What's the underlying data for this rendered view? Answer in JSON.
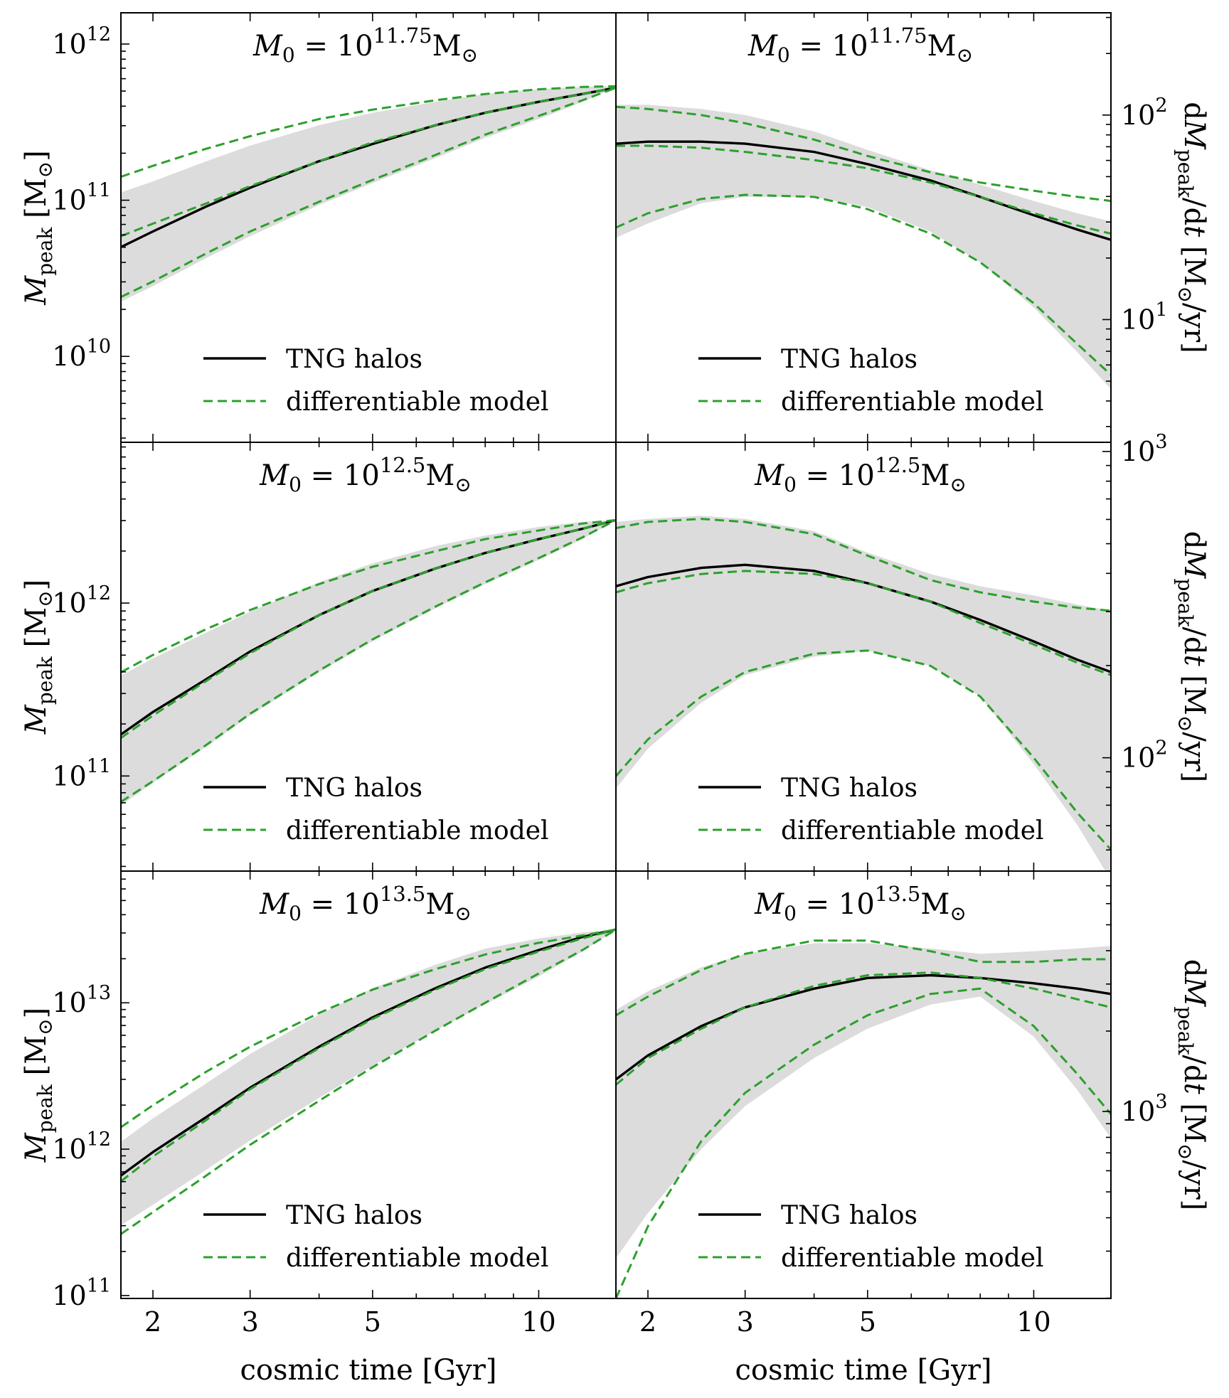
{
  "figure": {
    "xlabel": "cosmic time [Gyr]",
    "x_ticks": [
      2,
      3,
      5,
      10
    ],
    "colors": {
      "band": "#dcdcdc",
      "tng": "#000000",
      "model": "#2ca02c"
    }
  },
  "chart_data": [
    {
      "type": "line",
      "panel": "top-left",
      "quantity": "Mpeak",
      "title": "M0 = 10^11.75 M⊙",
      "ylabel": "Mpeak [M⊙]",
      "yscale": "log",
      "ylim_log10": [
        9.45,
        12.2
      ],
      "y_ticks_log10": [
        10,
        11,
        12
      ],
      "xscale": "log",
      "xlim": [
        1.75,
        13.8
      ],
      "legend": {
        "position": "lower-center",
        "entries": [
          "TNG halos",
          "differentiable model"
        ]
      },
      "x": [
        1.75,
        2.0,
        2.5,
        3.0,
        4.0,
        5.0,
        6.5,
        8.0,
        10.0,
        12.0,
        13.8
      ],
      "series": [
        {
          "name": "TNG halos",
          "style": "solid",
          "log10_values": [
            10.7,
            10.8,
            10.96,
            11.08,
            11.25,
            11.36,
            11.48,
            11.56,
            11.63,
            11.68,
            11.72
          ]
        },
        {
          "style": "dashed",
          "log10_values": [
            11.15,
            11.22,
            11.33,
            11.41,
            11.52,
            11.58,
            11.64,
            11.68,
            11.71,
            11.725,
            11.73
          ]
        },
        {
          "style": "dashed",
          "log10_values": [
            10.77,
            10.85,
            10.98,
            11.09,
            11.25,
            11.37,
            11.48,
            11.56,
            11.63,
            11.68,
            11.72
          ]
        },
        {
          "style": "dashed",
          "log10_values": [
            10.38,
            10.48,
            10.66,
            10.8,
            10.99,
            11.13,
            11.29,
            11.42,
            11.54,
            11.64,
            11.72
          ]
        }
      ],
      "band": {
        "upper_log10": [
          11.05,
          11.12,
          11.25,
          11.35,
          11.48,
          11.56,
          11.63,
          11.68,
          11.71,
          11.725,
          11.73
        ],
        "lower_log10": [
          10.35,
          10.45,
          10.63,
          10.77,
          10.97,
          11.11,
          11.27,
          11.4,
          11.52,
          11.63,
          11.72
        ]
      }
    },
    {
      "type": "line",
      "panel": "top-right",
      "quantity": "dMpeak/dt",
      "title": "M0 = 10^11.75 M⊙",
      "ylabel": "dMpeak/dt [M⊙/yr]",
      "yscale": "log",
      "ylim_log10": [
        0.4,
        2.5
      ],
      "y_ticks_log10": [
        1,
        2
      ],
      "xscale": "log",
      "xlim": [
        1.75,
        13.8
      ],
      "legend": {
        "position": "lower-center",
        "entries": [
          "TNG halos",
          "differentiable model"
        ]
      },
      "x": [
        1.75,
        2.0,
        2.5,
        3.0,
        4.0,
        5.0,
        6.5,
        8.0,
        10.0,
        12.0,
        13.8
      ],
      "series": [
        {
          "name": "TNG halos",
          "style": "solid",
          "log10_values": [
            1.86,
            1.87,
            1.87,
            1.86,
            1.82,
            1.76,
            1.68,
            1.6,
            1.51,
            1.44,
            1.39
          ]
        },
        {
          "style": "dashed",
          "log10_values": [
            2.04,
            2.03,
            2.0,
            1.96,
            1.88,
            1.8,
            1.72,
            1.67,
            1.63,
            1.6,
            1.58
          ]
        },
        {
          "style": "dashed",
          "log10_values": [
            1.85,
            1.85,
            1.84,
            1.82,
            1.78,
            1.74,
            1.67,
            1.6,
            1.52,
            1.46,
            1.42
          ]
        },
        {
          "style": "dashed",
          "log10_values": [
            1.45,
            1.52,
            1.59,
            1.61,
            1.6,
            1.54,
            1.42,
            1.28,
            1.08,
            0.88,
            0.73
          ]
        }
      ],
      "band": {
        "upper_log10": [
          2.05,
          2.05,
          2.03,
          2.0,
          1.92,
          1.83,
          1.73,
          1.66,
          1.58,
          1.52,
          1.48
        ],
        "lower_log10": [
          1.4,
          1.47,
          1.57,
          1.6,
          1.6,
          1.55,
          1.43,
          1.28,
          1.06,
          0.84,
          0.66
        ]
      }
    },
    {
      "type": "line",
      "panel": "middle-left",
      "quantity": "Mpeak",
      "title": "M0 = 10^12.5 M⊙",
      "ylabel": "Mpeak [M⊙]",
      "yscale": "log",
      "ylim_log10": [
        10.45,
        12.93
      ],
      "y_ticks_log10": [
        11,
        12
      ],
      "xscale": "log",
      "xlim": [
        1.75,
        13.8
      ],
      "legend": {
        "position": "lower-center",
        "entries": [
          "TNG halos",
          "differentiable model"
        ]
      },
      "x": [
        1.75,
        2.0,
        2.5,
        3.0,
        4.0,
        5.0,
        6.5,
        8.0,
        10.0,
        12.0,
        13.8
      ],
      "series": [
        {
          "name": "TNG halos",
          "style": "solid",
          "log10_values": [
            11.24,
            11.37,
            11.56,
            11.72,
            11.93,
            12.07,
            12.2,
            12.29,
            12.37,
            12.43,
            12.48
          ]
        },
        {
          "style": "dashed",
          "log10_values": [
            11.6,
            11.7,
            11.85,
            11.96,
            12.11,
            12.21,
            12.3,
            12.37,
            12.42,
            12.46,
            12.48
          ]
        },
        {
          "style": "dashed",
          "log10_values": [
            11.22,
            11.35,
            11.55,
            11.71,
            11.93,
            12.07,
            12.2,
            12.29,
            12.37,
            12.43,
            12.48
          ]
        },
        {
          "style": "dashed",
          "log10_values": [
            10.85,
            10.97,
            11.18,
            11.36,
            11.61,
            11.79,
            11.98,
            12.12,
            12.26,
            12.38,
            12.48
          ]
        }
      ],
      "band": {
        "upper_log10": [
          11.58,
          11.68,
          11.83,
          11.95,
          12.12,
          12.23,
          12.33,
          12.39,
          12.44,
          12.47,
          12.48
        ],
        "lower_log10": [
          10.83,
          10.96,
          11.17,
          11.35,
          11.6,
          11.78,
          11.97,
          12.11,
          12.25,
          12.37,
          12.48
        ]
      }
    },
    {
      "type": "line",
      "panel": "middle-right",
      "quantity": "dMpeak/dt",
      "title": "M0 = 10^12.5 M⊙",
      "ylabel": "dMpeak/dt [M⊙/yr]",
      "yscale": "log",
      "ylim_log10": [
        1.63,
        3.03
      ],
      "y_ticks_log10": [
        2,
        3
      ],
      "xscale": "log",
      "xlim": [
        1.75,
        13.8
      ],
      "legend": {
        "position": "lower-center",
        "entries": [
          "TNG halos",
          "differentiable model"
        ]
      },
      "x": [
        1.75,
        2.0,
        2.5,
        3.0,
        4.0,
        5.0,
        6.5,
        8.0,
        10.0,
        12.0,
        13.8
      ],
      "series": [
        {
          "name": "TNG halos",
          "style": "solid",
          "log10_values": [
            2.56,
            2.59,
            2.62,
            2.63,
            2.61,
            2.57,
            2.51,
            2.45,
            2.38,
            2.32,
            2.28
          ]
        },
        {
          "style": "dashed",
          "log10_values": [
            2.75,
            2.77,
            2.78,
            2.77,
            2.73,
            2.66,
            2.58,
            2.54,
            2.51,
            2.49,
            2.48
          ]
        },
        {
          "style": "dashed",
          "log10_values": [
            2.54,
            2.57,
            2.6,
            2.61,
            2.6,
            2.57,
            2.51,
            2.44,
            2.37,
            2.31,
            2.27
          ]
        },
        {
          "style": "dashed",
          "log10_values": [
            1.94,
            2.06,
            2.2,
            2.28,
            2.34,
            2.35,
            2.3,
            2.2,
            2.0,
            1.82,
            1.7
          ]
        }
      ],
      "band": {
        "upper_log10": [
          2.77,
          2.78,
          2.79,
          2.78,
          2.74,
          2.67,
          2.6,
          2.56,
          2.53,
          2.5,
          2.48
        ],
        "lower_log10": [
          1.9,
          2.03,
          2.18,
          2.27,
          2.33,
          2.35,
          2.3,
          2.2,
          1.98,
          1.78,
          1.6
        ]
      }
    },
    {
      "type": "line",
      "panel": "bottom-left",
      "quantity": "Mpeak",
      "title": "M0 = 10^13.5 M⊙",
      "ylabel": "Mpeak [M⊙]",
      "yscale": "log",
      "ylim_log10": [
        10.98,
        13.9
      ],
      "y_ticks_log10": [
        11,
        12,
        13
      ],
      "xscale": "log",
      "xlim": [
        1.75,
        13.8
      ],
      "legend": {
        "position": "lower-center",
        "entries": [
          "TNG halos",
          "differentiable model"
        ]
      },
      "x": [
        1.75,
        2.0,
        2.5,
        3.0,
        4.0,
        5.0,
        6.5,
        8.0,
        10.0,
        12.0,
        13.8
      ],
      "series": [
        {
          "name": "TNG halos",
          "style": "solid",
          "log10_values": [
            11.82,
            11.98,
            12.22,
            12.42,
            12.7,
            12.9,
            13.1,
            13.24,
            13.36,
            13.45,
            13.5
          ]
        },
        {
          "style": "dashed",
          "log10_values": [
            12.15,
            12.3,
            12.53,
            12.7,
            12.93,
            13.09,
            13.23,
            13.33,
            13.41,
            13.46,
            13.5
          ]
        },
        {
          "style": "dashed",
          "log10_values": [
            11.78,
            11.95,
            12.2,
            12.41,
            12.69,
            12.89,
            13.09,
            13.23,
            13.35,
            13.44,
            13.5
          ]
        },
        {
          "style": "dashed",
          "log10_values": [
            11.42,
            11.57,
            11.82,
            12.03,
            12.33,
            12.56,
            12.81,
            13.0,
            13.2,
            13.36,
            13.5
          ]
        }
      ],
      "band": {
        "upper_log10": [
          12.05,
          12.21,
          12.45,
          12.65,
          12.92,
          13.1,
          13.26,
          13.37,
          13.44,
          13.48,
          13.5
        ],
        "lower_log10": [
          11.48,
          11.62,
          11.86,
          12.06,
          12.35,
          12.57,
          12.81,
          12.99,
          13.18,
          13.35,
          13.5
        ]
      }
    },
    {
      "type": "line",
      "panel": "bottom-right",
      "quantity": "dMpeak/dt",
      "title": "M0 = 10^13.5 M⊙",
      "ylabel": "dMpeak/dt [M⊙/yr]",
      "yscale": "log",
      "ylim_log10": [
        2.3,
        3.9
      ],
      "y_ticks_log10": [
        3
      ],
      "xscale": "log",
      "xlim": [
        1.75,
        13.8
      ],
      "legend": {
        "position": "lower-center",
        "entries": [
          "TNG halos",
          "differentiable model"
        ]
      },
      "x": [
        1.75,
        2.0,
        2.5,
        3.0,
        4.0,
        5.0,
        6.5,
        8.0,
        10.0,
        12.0,
        13.8
      ],
      "series": [
        {
          "name": "TNG halos",
          "style": "solid",
          "log10_values": [
            3.12,
            3.21,
            3.32,
            3.39,
            3.46,
            3.5,
            3.51,
            3.5,
            3.48,
            3.46,
            3.44
          ]
        },
        {
          "style": "dashed",
          "log10_values": [
            3.36,
            3.43,
            3.53,
            3.59,
            3.64,
            3.64,
            3.6,
            3.56,
            3.56,
            3.57,
            3.57
          ]
        },
        {
          "style": "dashed",
          "log10_values": [
            3.1,
            3.2,
            3.31,
            3.39,
            3.47,
            3.51,
            3.52,
            3.5,
            3.46,
            3.42,
            3.39
          ]
        },
        {
          "style": "dashed",
          "log10_values": [
            2.3,
            2.57,
            2.89,
            3.07,
            3.25,
            3.36,
            3.44,
            3.46,
            3.32,
            3.14,
            2.99
          ]
        }
      ],
      "band": {
        "upper_log10": [
          3.38,
          3.45,
          3.54,
          3.59,
          3.63,
          3.63,
          3.61,
          3.59,
          3.6,
          3.61,
          3.62
        ],
        "lower_log10": [
          2.45,
          2.62,
          2.86,
          3.02,
          3.2,
          3.31,
          3.4,
          3.43,
          3.28,
          3.08,
          2.9
        ]
      }
    }
  ]
}
